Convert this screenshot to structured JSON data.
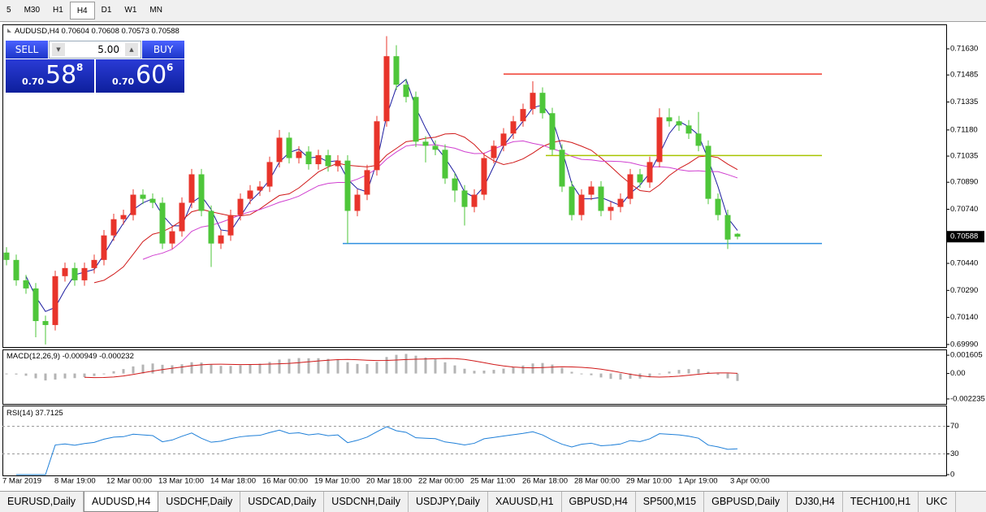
{
  "toolbar": {
    "timeframes": [
      "5",
      "M30",
      "H1",
      "H4",
      "D1",
      "W1",
      "MN"
    ],
    "active": 3
  },
  "chart": {
    "symbol": "AUDUSD,H4",
    "bull_color": "#e8342b",
    "bear_color": "#4ec63a",
    "ylim": [
      0.69976,
      0.71761
    ],
    "yticks": [
      {
        "value": 0.7163,
        "label": "0.71630"
      },
      0.71485,
      0.71335,
      {
        "value": 0.7118,
        "label": "0.71180"
      },
      0.71035,
      {
        "value": 0.7089,
        "label": "0.70890"
      },
      {
        "value": 0.7074,
        "label": "0.70740"
      },
      {
        "value": 0.7044,
        "label": "0.70440"
      },
      {
        "value": 0.7029,
        "label": "0.70290"
      },
      {
        "value": 0.7014,
        "label": "0.70140"
      },
      {
        "value": 0.6999,
        "label": "0.69990"
      }
    ],
    "levels": [
      {
        "value": 0.7149,
        "color": "#f03c2e"
      },
      {
        "value": 0.71038,
        "color": "#a8c400"
      },
      {
        "value": 0.7055,
        "color": "#2f8fe0"
      }
    ],
    "candles": [
      [
        0.705,
        0.7053,
        0.70429,
        0.70459
      ],
      [
        0.70459,
        0.70489,
        0.70316,
        0.70346
      ],
      [
        0.70346,
        0.70376,
        0.70271,
        0.70301
      ],
      [
        0.70301,
        0.70331,
        0.7003,
        0.7012
      ],
      [
        0.7012,
        0.7015,
        0.6999,
        0.70098
      ],
      [
        0.70098,
        0.70399,
        0.70068,
        0.70369
      ],
      [
        0.70369,
        0.70444,
        0.70339,
        0.70414
      ],
      [
        0.70414,
        0.70444,
        0.70316,
        0.70346
      ],
      [
        0.70346,
        0.70444,
        0.70316,
        0.70414
      ],
      [
        0.70414,
        0.70489,
        0.70384,
        0.70459
      ],
      [
        0.70459,
        0.70625,
        0.70429,
        0.70595
      ],
      [
        0.70595,
        0.70715,
        0.70565,
        0.70685
      ],
      [
        0.70685,
        0.70738,
        0.70655,
        0.70708
      ],
      [
        0.70708,
        0.70851,
        0.70678,
        0.70821
      ],
      [
        0.70821,
        0.70851,
        0.70768,
        0.70798
      ],
      [
        0.70798,
        0.70828,
        0.70746,
        0.70776
      ],
      [
        0.70776,
        0.70806,
        0.7052,
        0.7055
      ],
      [
        0.7055,
        0.70648,
        0.7052,
        0.70618
      ],
      [
        0.70618,
        0.70806,
        0.70588,
        0.70776
      ],
      [
        0.70776,
        0.70964,
        0.70746,
        0.70934
      ],
      [
        0.70934,
        0.70964,
        0.70701,
        0.70731
      ],
      [
        0.70731,
        0.70761,
        0.7042,
        0.7055
      ],
      [
        0.7055,
        0.70625,
        0.7052,
        0.70595
      ],
      [
        0.70595,
        0.70738,
        0.70565,
        0.70708
      ],
      [
        0.70708,
        0.70828,
        0.70678,
        0.70798
      ],
      [
        0.70798,
        0.70874,
        0.70768,
        0.70844
      ],
      [
        0.70844,
        0.70896,
        0.70814,
        0.70866
      ],
      [
        0.70866,
        0.71032,
        0.70836,
        0.71002
      ],
      [
        0.71002,
        0.7118,
        0.70972,
        0.71137
      ],
      [
        0.71137,
        0.71167,
        0.70994,
        0.71024
      ],
      [
        0.71024,
        0.7109,
        0.70994,
        0.7106
      ],
      [
        0.7106,
        0.7109,
        0.7096,
        0.7099
      ],
      [
        0.7099,
        0.7107,
        0.7096,
        0.7104
      ],
      [
        0.7104,
        0.7107,
        0.70949,
        0.70979
      ],
      [
        0.70979,
        0.7104,
        0.70949,
        0.7101
      ],
      [
        0.7101,
        0.7104,
        0.7055,
        0.70731
      ],
      [
        0.70731,
        0.70851,
        0.70701,
        0.70821
      ],
      [
        0.70821,
        0.70987,
        0.70791,
        0.70957
      ],
      [
        0.70957,
        0.71258,
        0.70927,
        0.71228
      ],
      [
        0.71228,
        0.717,
        0.71198,
        0.71589
      ],
      [
        0.71589,
        0.7165,
        0.71401,
        0.71431
      ],
      [
        0.71431,
        0.71461,
        0.71333,
        0.71363
      ],
      [
        0.71363,
        0.71393,
        0.71085,
        0.71115
      ],
      [
        0.71115,
        0.71145,
        0.71,
        0.71092
      ],
      [
        0.71092,
        0.71122,
        0.7104,
        0.7107
      ],
      [
        0.7107,
        0.711,
        0.70881,
        0.70911
      ],
      [
        0.70911,
        0.70941,
        0.7078,
        0.70844
      ],
      [
        0.70844,
        0.70874,
        0.7065,
        0.70753
      ],
      [
        0.70753,
        0.70851,
        0.70723,
        0.70821
      ],
      [
        0.70821,
        0.71054,
        0.70791,
        0.71024
      ],
      [
        0.71024,
        0.71122,
        0.70994,
        0.71092
      ],
      [
        0.71092,
        0.7119,
        0.71062,
        0.7116
      ],
      [
        0.7116,
        0.71258,
        0.7113,
        0.71228
      ],
      [
        0.71228,
        0.71326,
        0.71198,
        0.71296
      ],
      [
        0.71296,
        0.7145,
        0.71266,
        0.71386
      ],
      [
        0.71386,
        0.71416,
        0.71243,
        0.71273
      ],
      [
        0.71273,
        0.71303,
        0.7104,
        0.7107
      ],
      [
        0.7107,
        0.711,
        0.70836,
        0.70866
      ],
      [
        0.70866,
        0.70896,
        0.70678,
        0.70708
      ],
      [
        0.70708,
        0.70851,
        0.70678,
        0.70821
      ],
      [
        0.70821,
        0.70896,
        0.70791,
        0.70866
      ],
      [
        0.70866,
        0.70896,
        0.70701,
        0.70731
      ],
      [
        0.70731,
        0.70783,
        0.7068,
        0.70753
      ],
      [
        0.70753,
        0.70828,
        0.70723,
        0.70798
      ],
      [
        0.70798,
        0.70964,
        0.70768,
        0.70934
      ],
      [
        0.70934,
        0.70964,
        0.70859,
        0.70889
      ],
      [
        0.70889,
        0.71032,
        0.70859,
        0.71002
      ],
      [
        0.71002,
        0.713,
        0.70972,
        0.7125
      ],
      [
        0.7125,
        0.713,
        0.71198,
        0.71228
      ],
      [
        0.71228,
        0.71258,
        0.71175,
        0.71205
      ],
      [
        0.71205,
        0.71235,
        0.7113,
        0.7116
      ],
      [
        0.7116,
        0.7128,
        0.71062,
        0.71092
      ],
      [
        0.71092,
        0.71122,
        0.70768,
        0.70798
      ],
      [
        0.70798,
        0.70828,
        0.70678,
        0.70708
      ],
      [
        0.70708,
        0.70738,
        0.7052,
        0.70572
      ],
      [
        0.70604,
        0.70608,
        0.70573,
        0.70588
      ]
    ],
    "time_labels": [
      "7 Mar 2019",
      "8 Mar 19:00",
      "12 Mar 00:00",
      "13 Mar 10:00",
      "14 Mar 18:00",
      "16 Mar 00:00",
      "19 Mar 10:00",
      "20 Mar 18:00",
      "22 Mar 00:00",
      "25 Mar 11:00",
      "26 Mar 18:00",
      "28 Mar 00:00",
      "29 Mar 10:00",
      "1 Apr 19:00",
      "3 Apr 00:00"
    ]
  },
  "macd": {
    "name": "MACD(12,26,9)",
    "main": -0.000949,
    "signal": -0.000232,
    "ylim": [
      -0.00267,
      0.00204
    ],
    "yticks": [
      0.001605,
      {
        "value": 0,
        "label": "0.00"
      },
      -0.002235
    ]
  },
  "rsi": {
    "name": "RSI(14)",
    "value": 37.7125,
    "ylim": [
      0,
      100
    ],
    "yticks": [
      70,
      30,
      0
    ]
  },
  "trade": {
    "sell": "SELL",
    "buy": "BUY",
    "volume": "5.00",
    "bid": {
      "prefix": "0.70",
      "big": "58",
      "small": "8"
    },
    "ask": {
      "prefix": "0.70",
      "big": "60",
      "small": "6"
    }
  },
  "tabs": {
    "items": [
      "EURUSD,Daily",
      "AUDUSD,H4",
      "USDCHF,Daily",
      "USDCAD,Daily",
      "USDCNH,Daily",
      "USDJPY,Daily",
      "XAUUSD,H1",
      "GBPUSD,H4",
      "SP500,M15",
      "GBPUSD,Daily",
      "DJ30,H4",
      "TECH100,H1",
      "UKC"
    ],
    "active": 1
  }
}
